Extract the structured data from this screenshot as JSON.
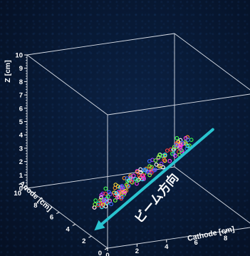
{
  "chart_data": {
    "type": "scatter",
    "dimensions": 3,
    "title": "",
    "axes": {
      "x": {
        "label": "Cathode [cm]",
        "ticks": [
          "0",
          "2",
          "4",
          "6",
          "8",
          "10"
        ],
        "range": [
          0,
          10
        ]
      },
      "y": {
        "label": "Anode [cm]",
        "ticks": [
          "0",
          "2",
          "4",
          "6",
          "8",
          "10"
        ],
        "range": [
          0,
          10
        ]
      },
      "z": {
        "label": "Z [cm]",
        "ticks": [
          "0",
          "1",
          "2",
          "3",
          "4",
          "5",
          "6",
          "7",
          "8",
          "9",
          "10"
        ],
        "range": [
          0,
          10
        ]
      }
    },
    "annotation": {
      "text": "ビーム方向",
      "arrow_color": "#29c3cf",
      "arrow_from": [
        8,
        6,
        0
      ],
      "arrow_to": [
        0,
        2,
        0
      ]
    },
    "track": {
      "description_points": "cluster of hits along a straight track",
      "start": [
        2.0,
        5.2,
        0.4
      ],
      "end": [
        8.8,
        6.0,
        4.0
      ],
      "marker": "open-circle",
      "colors": [
        "#ff3b3b",
        "#3bff4e",
        "#3b6bff",
        "#ffe23b",
        "#ff3bf0",
        "#3bf5ff",
        "#ff9a2e",
        "#ffffff",
        "#9b3bff",
        "#7dff3b"
      ]
    },
    "grid": false,
    "legend": "none",
    "background": "#081a36",
    "box_color": "#d8dde6"
  }
}
